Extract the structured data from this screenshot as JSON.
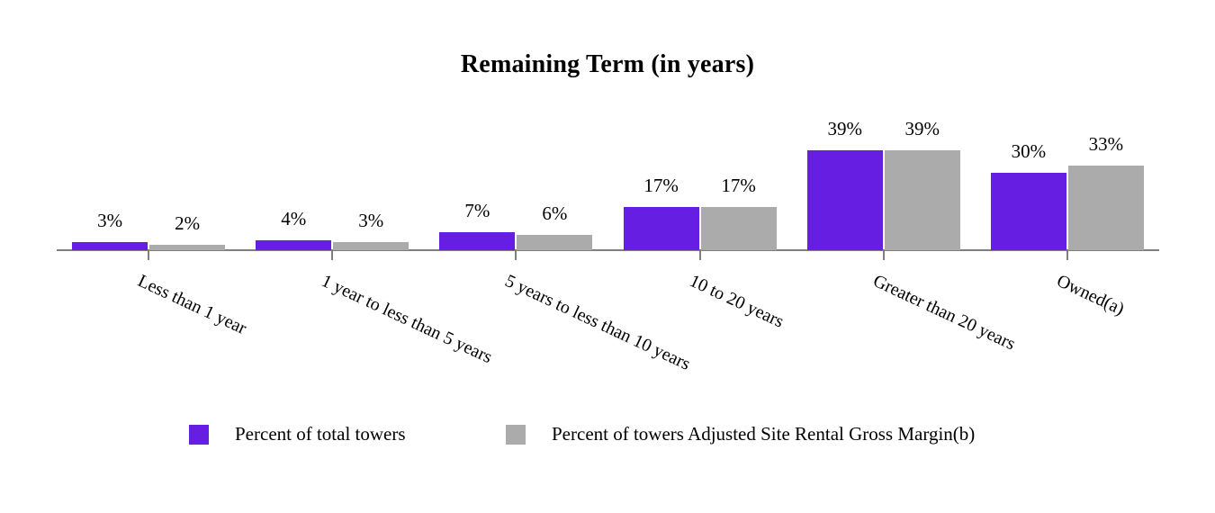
{
  "chart_data": {
    "type": "bar",
    "title": "Remaining Term (in years)",
    "categories": [
      "Less than 1 year",
      "1 year to less than 5 years",
      "5 years to less than 10 years",
      "10 to 20 years",
      "Greater than 20 years",
      "Owned(a)"
    ],
    "series": [
      {
        "name": "Percent of total towers",
        "color": "#661ee3",
        "values": [
          3,
          4,
          7,
          17,
          39,
          30
        ],
        "value_labels": [
          "3%",
          "4%",
          "7%",
          "17%",
          "39%",
          "30%"
        ]
      },
      {
        "name": "Percent of towers Adjusted Site Rental Gross Margin(b)",
        "color": "#ababab",
        "values": [
          2,
          3,
          6,
          17,
          39,
          33
        ],
        "value_labels": [
          "2%",
          "3%",
          "6%",
          "17%",
          "39%",
          "33%"
        ]
      }
    ],
    "ylim": [
      0,
      45
    ],
    "grid": false,
    "y_axis_visible": false,
    "legend_position": "bottom",
    "axis_color": "#7f7f7f",
    "text_color": "#000000",
    "data_labels_shown": true
  }
}
